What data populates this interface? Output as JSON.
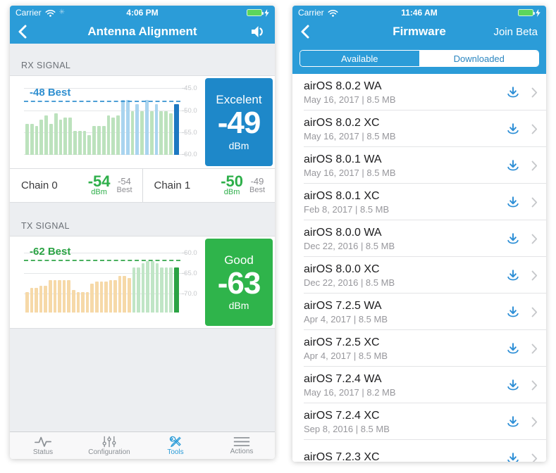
{
  "colors": {
    "header_blue": "#2b9cd8",
    "panel_blue": "#1e88c9",
    "panel_green": "#2fb44b",
    "value_green": "#2eaf4a",
    "download_blue": "#2e8fd6",
    "background_gray": "#eceef1"
  },
  "left_phone": {
    "status_bar": {
      "carrier": "Carrier",
      "time": "4:06 PM"
    },
    "nav": {
      "title": "Antenna Alignment"
    },
    "rx": {
      "section_label": "RX SIGNAL",
      "status": "Excelent",
      "value": "-49",
      "unit": "dBm"
    },
    "chains": [
      {
        "label": "Chain 0",
        "value": "-54",
        "unit": "dBm",
        "best_value": "-54",
        "best_label": "Best"
      },
      {
        "label": "Chain 1",
        "value": "-50",
        "unit": "dBm",
        "best_value": "-49",
        "best_label": "Best"
      }
    ],
    "tx": {
      "section_label": "TX SIGNAL",
      "status": "Good",
      "value": "-63",
      "unit": "dBm"
    },
    "tab_bar": [
      {
        "label": "Status",
        "icon": "pulse-icon",
        "active": false
      },
      {
        "label": "Configuration",
        "icon": "sliders-icon",
        "active": false
      },
      {
        "label": "Tools",
        "icon": "tools-icon",
        "active": true
      },
      {
        "label": "Actions",
        "icon": "menu-icon",
        "active": false
      }
    ]
  },
  "right_phone": {
    "status_bar": {
      "carrier": "Carrier",
      "time": "11:46 AM"
    },
    "nav": {
      "title": "Firmware",
      "action": "Join Beta"
    },
    "segments": [
      {
        "label": "Available",
        "selected": true
      },
      {
        "label": "Downloaded",
        "selected": false
      }
    ],
    "firmware_list": [
      {
        "name": "airOS 8.0.2 WA",
        "meta": "May 16, 2017 | 8.5 MB"
      },
      {
        "name": "airOS 8.0.2 XC",
        "meta": "May 16, 2017 | 8.5 MB"
      },
      {
        "name": "airOS 8.0.1 WA",
        "meta": "May 16, 2017 | 8.5 MB"
      },
      {
        "name": "airOS 8.0.1 XC",
        "meta": "Feb 8, 2017 | 8.5 MB"
      },
      {
        "name": "airOS 8.0.0 WA",
        "meta": "Dec 22, 2016 | 8.5 MB"
      },
      {
        "name": "airOS 8.0.0 XC",
        "meta": "Dec 22, 2016 | 8.5 MB"
      },
      {
        "name": "airOS 7.2.5 WA",
        "meta": "Apr 4, 2017 | 8.5 MB"
      },
      {
        "name": "airOS 7.2.5 XC",
        "meta": "Apr 4, 2017 | 8.5 MB"
      },
      {
        "name": "airOS 7.2.4 WA",
        "meta": "May 16, 2017 | 8.2 MB"
      },
      {
        "name": "airOS 7.2.4 XC",
        "meta": "Sep 8, 2016 | 8.5 MB"
      },
      {
        "name": "airOS 7.2.3 XC",
        "meta": ""
      }
    ]
  },
  "chart_data": [
    {
      "id": "rx",
      "type": "bar",
      "title": "RX SIGNAL",
      "ylabel": "dBm",
      "ylim": [
        -60,
        -44
      ],
      "yticks": [
        -45.0,
        -50.0,
        -55.0,
        -60.0
      ],
      "grid": true,
      "best": -48,
      "best_label": "-48 Best",
      "best_color": "#2f8fd0",
      "values": [
        -53,
        -53,
        -53.5,
        -52,
        -51,
        -53,
        -50.5,
        -52,
        -51.5,
        -51.5,
        -54.5,
        -54.5,
        -54.5,
        -55.5,
        -53.5,
        -53.5,
        -53.5,
        -51,
        -51.5,
        -51,
        -47.5,
        -47.5,
        -50,
        -48.5,
        -50,
        -47.5,
        -50,
        -48.5,
        -50,
        -50,
        -50.5,
        -48.5
      ],
      "kinds": [
        "n",
        "n",
        "n",
        "n",
        "n",
        "n",
        "n",
        "n",
        "n",
        "n",
        "n",
        "n",
        "n",
        "n",
        "n",
        "n",
        "n",
        "n",
        "n",
        "n",
        "h",
        "h",
        "n",
        "h",
        "n",
        "h",
        "n",
        "h",
        "n",
        "n",
        "n",
        "c"
      ],
      "bar_colors": {
        "n": "#bce2bd",
        "h": "#a9d4ef",
        "c": "#1d78c1"
      }
    },
    {
      "id": "tx",
      "type": "bar",
      "title": "TX SIGNAL",
      "ylabel": "dBm",
      "ylim": [
        -74.5,
        -59
      ],
      "yticks": [
        -60.0,
        -65.0,
        -70.0
      ],
      "grid": true,
      "best": -62,
      "best_label": "-62 Best",
      "best_color": "#2ba344",
      "values": [
        -69.5,
        -68.5,
        -68.5,
        -68,
        -68,
        -66.5,
        -66.5,
        -66.5,
        -66.5,
        -66.5,
        -69,
        -69.5,
        -69.5,
        -69.5,
        -67.5,
        -67,
        -67,
        -67,
        -66.5,
        -66.5,
        -65.5,
        -65.5,
        -66,
        -63.5,
        -63.5,
        -62.5,
        -62,
        -62,
        -62.5,
        -63.5,
        -63.5,
        -63.5,
        -63.5
      ],
      "kinds": [
        "n",
        "n",
        "n",
        "n",
        "n",
        "n",
        "n",
        "n",
        "n",
        "n",
        "n",
        "n",
        "n",
        "n",
        "n",
        "n",
        "n",
        "n",
        "n",
        "n",
        "n",
        "n",
        "n",
        "h",
        "h",
        "h",
        "h",
        "h",
        "h",
        "h",
        "h",
        "h",
        "c"
      ],
      "bar_colors": {
        "n": "#f6d9a8",
        "h": "#c0e5c6",
        "c": "#2ba344"
      }
    }
  ]
}
